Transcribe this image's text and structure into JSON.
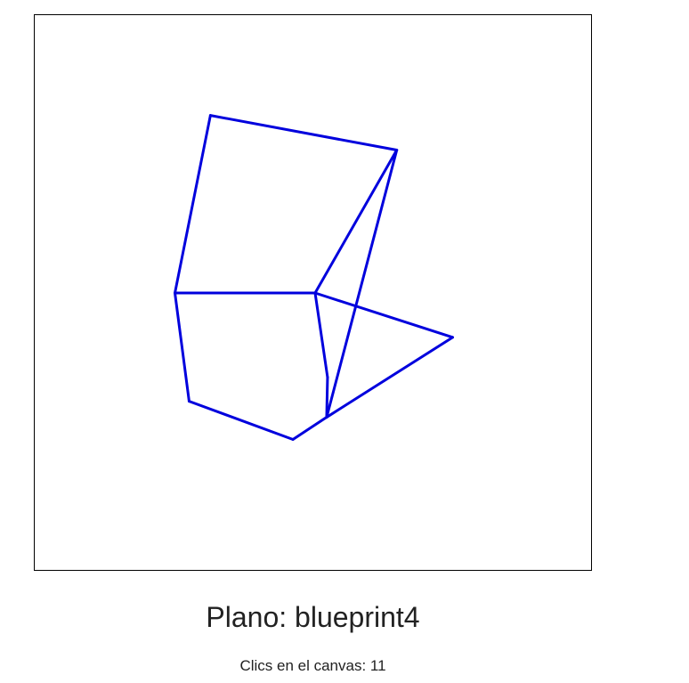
{
  "plan": {
    "title_prefix": "Plano:",
    "name": "blueprint4"
  },
  "clicks": {
    "label": "Clics en el canvas:",
    "count": "11"
  },
  "drawing": {
    "stroke_color": "#0000dd",
    "segment_count": 12
  }
}
